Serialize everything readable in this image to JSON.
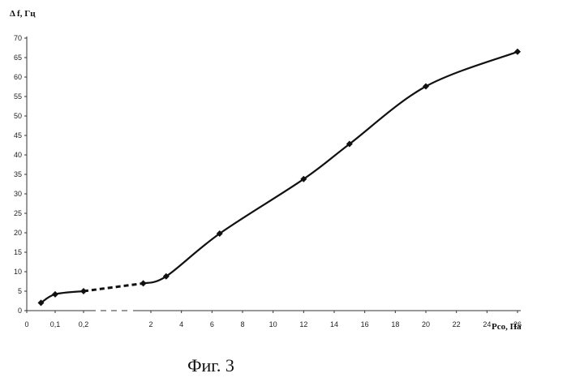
{
  "chart_data": {
    "type": "line",
    "title": "",
    "ylabel": "Δ f, Гц",
    "xlabel": "Pсо, Па",
    "ylim": [
      0,
      70
    ],
    "yticks": [
      0,
      5,
      10,
      15,
      20,
      25,
      30,
      35,
      40,
      45,
      50,
      55,
      60,
      65,
      70
    ],
    "xtick_labels": [
      "0",
      "0,1",
      "0,2",
      "2",
      "4",
      "6",
      "8",
      "10",
      "12",
      "14",
      "16",
      "18",
      "20",
      "22",
      "24",
      "26"
    ],
    "axis_break": {
      "between_x": [
        "0,2",
        "2"
      ],
      "style": "dashed"
    },
    "grid": false,
    "legend": "none",
    "series": [
      {
        "marker": "diamond",
        "color": "#111111",
        "points": [
          {
            "x": "0,05",
            "y": 2
          },
          {
            "x": "0,1",
            "y": 4.2
          },
          {
            "x": "0,2",
            "y": 5
          },
          {
            "x": "1,5",
            "y": 7
          },
          {
            "x": "3",
            "y": 8.8
          },
          {
            "x": "6,5",
            "y": 19.8
          },
          {
            "x": "12",
            "y": 33.8
          },
          {
            "x": "15",
            "y": 42.8
          },
          {
            "x": "20",
            "y": 57.6
          },
          {
            "x": "26",
            "y": 66.5
          }
        ]
      }
    ]
  },
  "caption": "Фиг. 3"
}
